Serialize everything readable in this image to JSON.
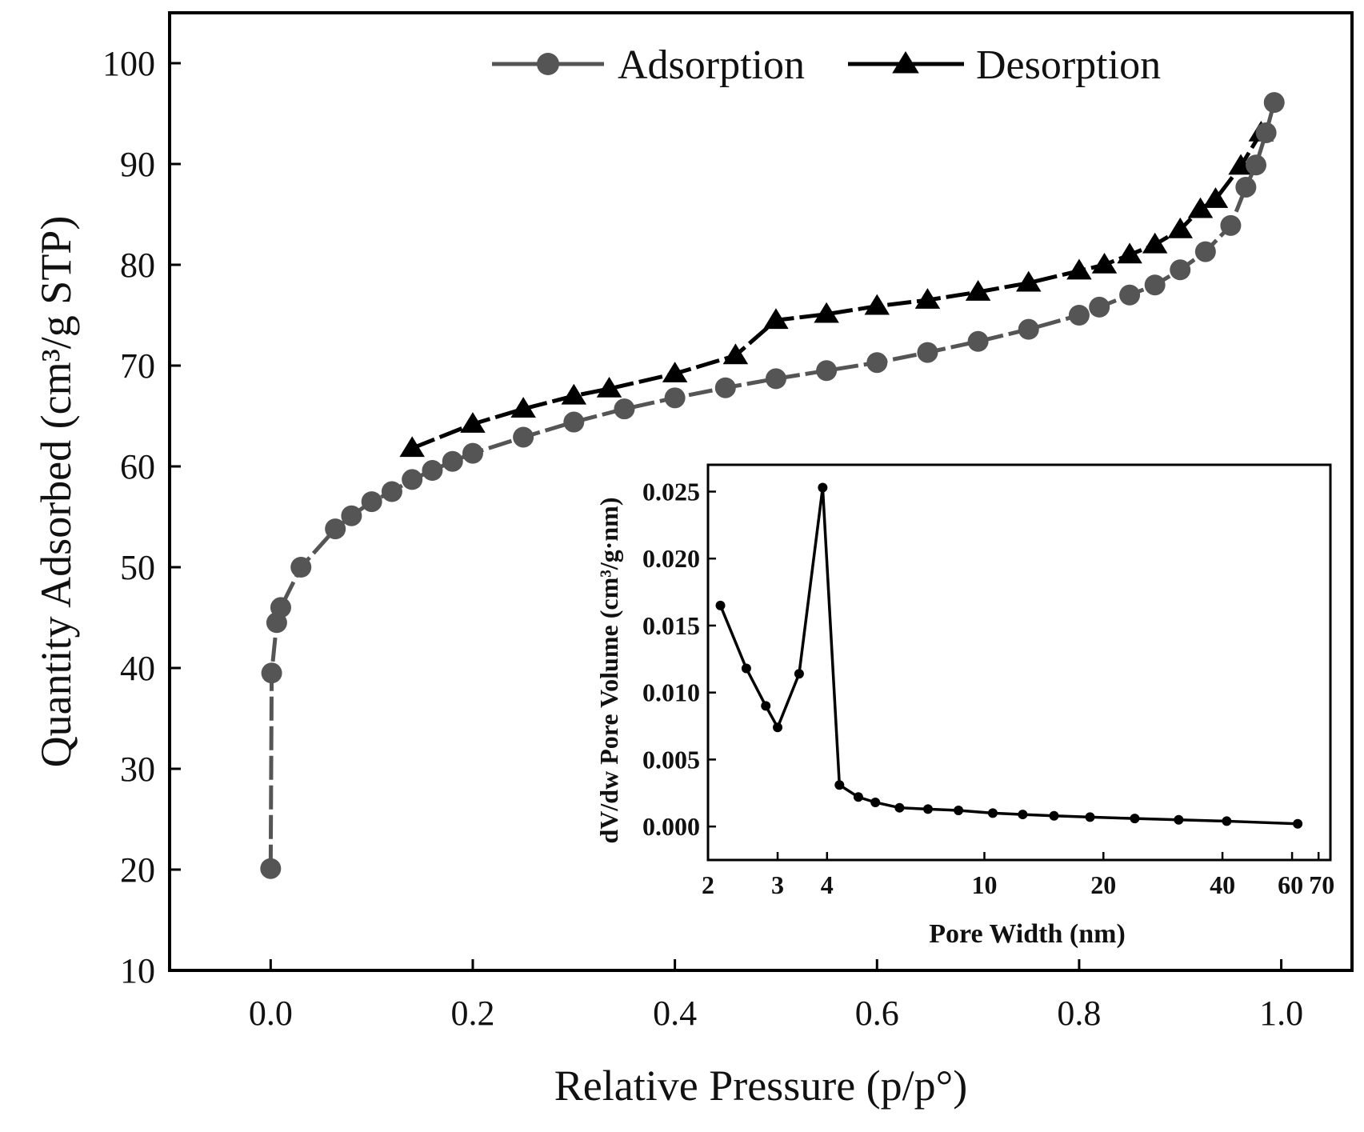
{
  "chart_data": [
    {
      "type": "scatter",
      "xlabel": "Relative Pressure (p/p°)",
      "ylabel": "Quantity Adsorbed (cm³/g STP)",
      "xlim": [
        -0.1,
        1.07
      ],
      "ylim": [
        10,
        105
      ],
      "xticks": [
        "0.0",
        "0.2",
        "0.4",
        "0.6",
        "0.8",
        "1.0"
      ],
      "yticks": [
        "10",
        "20",
        "30",
        "40",
        "50",
        "60",
        "70",
        "80",
        "90",
        "100"
      ],
      "grid": false,
      "legend_position": "top-right",
      "series": [
        {
          "name": "Adsorption",
          "marker": "circle",
          "color": "#555555",
          "dash": "dashed",
          "x": [
            0.0,
            0.001,
            0.006,
            0.01,
            0.03,
            0.064,
            0.08,
            0.1,
            0.12,
            0.14,
            0.16,
            0.18,
            0.2,
            0.25,
            0.3,
            0.35,
            0.4,
            0.45,
            0.5,
            0.55,
            0.6,
            0.65,
            0.7,
            0.75,
            0.8,
            0.82,
            0.85,
            0.875,
            0.9,
            0.925,
            0.95,
            0.965,
            0.975,
            0.985,
            0.993
          ],
          "y": [
            20.1,
            39.5,
            44.5,
            46.0,
            50.0,
            53.8,
            55.1,
            56.5,
            57.5,
            58.7,
            59.6,
            60.5,
            61.3,
            62.9,
            64.4,
            65.7,
            66.8,
            67.8,
            68.7,
            69.5,
            70.3,
            71.3,
            72.4,
            73.6,
            75.0,
            75.8,
            77.0,
            78.0,
            79.5,
            81.3,
            83.9,
            87.7,
            89.9,
            93.1,
            96.1
          ]
        },
        {
          "name": "Desorption",
          "marker": "triangle",
          "color": "#000000",
          "dash": "dashed",
          "x": [
            0.14,
            0.2,
            0.25,
            0.3,
            0.335,
            0.4,
            0.46,
            0.5,
            0.55,
            0.6,
            0.65,
            0.7,
            0.75,
            0.8,
            0.825,
            0.85,
            0.875,
            0.9,
            0.92,
            0.935,
            0.96,
            0.98
          ],
          "y": [
            61.8,
            64.2,
            65.7,
            67.0,
            67.7,
            69.2,
            71.0,
            74.5,
            75.1,
            75.9,
            76.5,
            77.3,
            78.2,
            79.4,
            80.0,
            81.0,
            82.0,
            83.5,
            85.5,
            86.5,
            89.8,
            93.1
          ]
        }
      ]
    },
    {
      "type": "line",
      "xlabel": "Pore Width (nm)",
      "ylabel": "dV/dw Pore Volume (cm³/g·nm)",
      "x_scale": "log",
      "xlim": [
        2,
        75
      ],
      "ylim": [
        -0.0025,
        0.027
      ],
      "xticks": [
        "2",
        "3",
        "4",
        "10",
        "20",
        "40",
        "60",
        "70"
      ],
      "yticks": [
        "0.000",
        "0.005",
        "0.010",
        "0.015",
        "0.020",
        "0.025"
      ],
      "series": [
        {
          "marker": "circle",
          "color": "#000000",
          "x": [
            2.15,
            2.5,
            2.8,
            3.0,
            3.4,
            3.9,
            4.3,
            4.8,
            5.3,
            6.1,
            7.2,
            8.6,
            10.5,
            12.5,
            15.0,
            18.5,
            24.0,
            31.0,
            41.0,
            62.0
          ],
          "y": [
            0.0165,
            0.0118,
            0.009,
            0.0074,
            0.0114,
            0.0253,
            0.0031,
            0.0022,
            0.0018,
            0.0014,
            0.0013,
            0.0012,
            0.001,
            0.0009,
            0.0008,
            0.0007,
            0.0006,
            0.0005,
            0.0004,
            0.0002
          ]
        }
      ]
    }
  ]
}
